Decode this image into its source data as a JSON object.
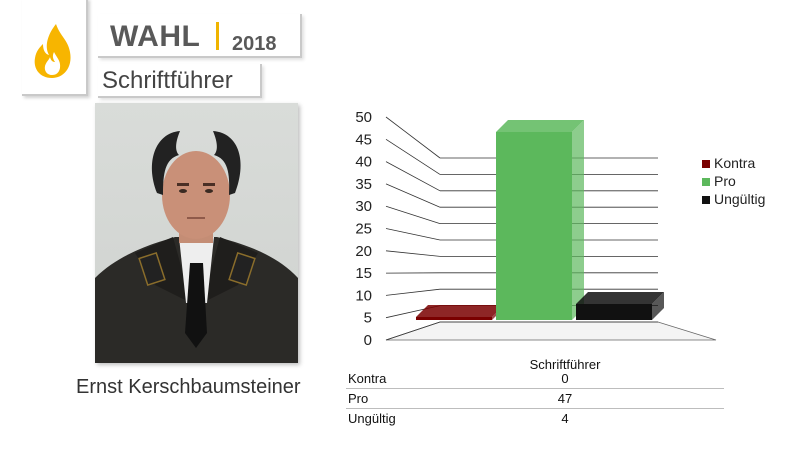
{
  "header": {
    "title": "WAHL",
    "year": "2018",
    "position": "Schriftführer"
  },
  "person": {
    "name": "Ernst Kerschbaumsteiner"
  },
  "icons": {
    "logo": "flame-icon"
  },
  "colors": {
    "accent": "#f0b400",
    "kontra": "#7a0000",
    "pro": "#5cb85c",
    "ungueltig": "#111111"
  },
  "chart_data": {
    "type": "bar",
    "categories": [
      "Schriftführer"
    ],
    "series": [
      {
        "name": "Kontra",
        "values": [
          0
        ],
        "color": "#7a0000"
      },
      {
        "name": "Pro",
        "values": [
          47
        ],
        "color": "#5cb85c"
      },
      {
        "name": "Ungültig",
        "values": [
          4
        ],
        "color": "#111111"
      }
    ],
    "yticks": [
      0,
      5,
      10,
      15,
      20,
      25,
      30,
      35,
      40,
      45,
      50
    ],
    "ylim": [
      0,
      50
    ],
    "grid": true,
    "legend": "right",
    "table": {
      "header": "Schriftführer",
      "rows": [
        {
          "label": "Kontra",
          "value": "0"
        },
        {
          "label": "Pro",
          "value": "47"
        },
        {
          "label": "Ungültig",
          "value": "4"
        }
      ]
    }
  }
}
